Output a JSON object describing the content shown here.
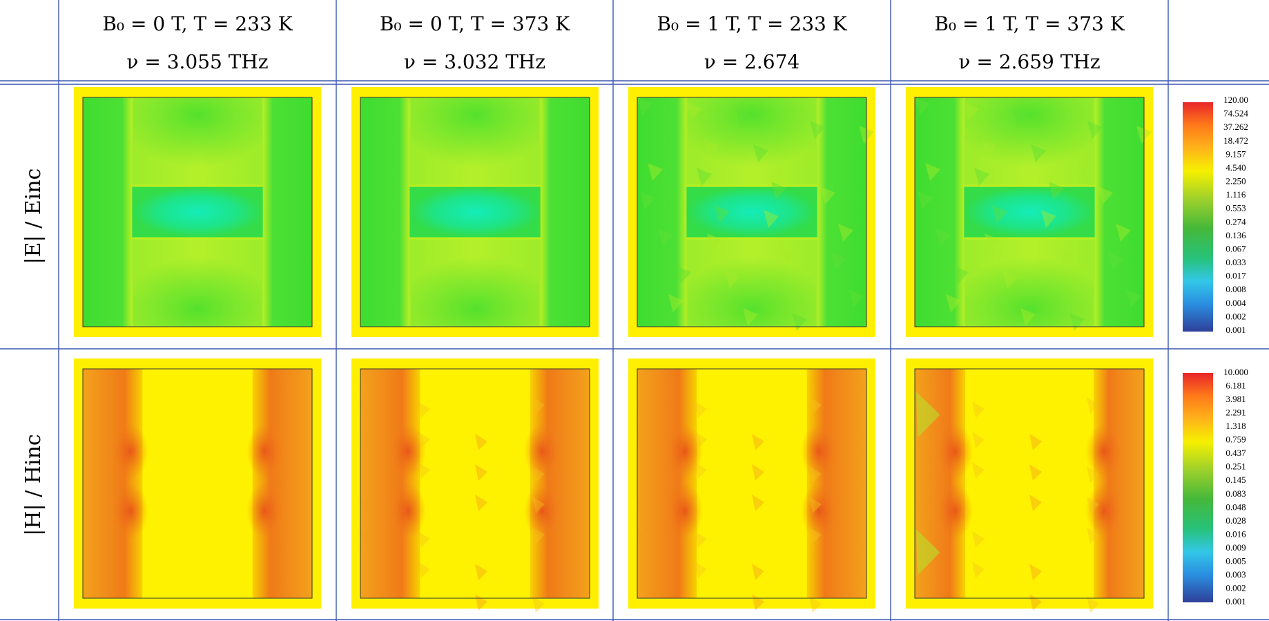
{
  "columns": [
    {
      "title": "B₀ = 0 T, T = 233 K",
      "freq": "ν = 3.055 THz"
    },
    {
      "title": "B₀ = 0 T, T = 373 K",
      "freq": "ν = 3.032 THz"
    },
    {
      "title": "B₀ = 1 T, T = 233 K",
      "freq": "ν = 2.674"
    },
    {
      "title": "B₀ = 1 T, T = 373 K",
      "freq": "ν = 2.659 THz"
    }
  ],
  "rows": [
    {
      "label": "|E| / Einc",
      "key": "E"
    },
    {
      "label": "|H| / Hinc",
      "key": "H"
    }
  ],
  "colorbars": {
    "E": {
      "ticks": [
        "120.00",
        "74.524",
        "37.262",
        "18.472",
        "9.157",
        "4.540",
        "2.250",
        "1.116",
        "0.553",
        "0.274",
        "0.136",
        "0.067",
        "0.033",
        "0.017",
        "0.008",
        "0.004",
        "0.002",
        "0.001"
      ]
    },
    "H": {
      "ticks": [
        "10.000",
        "6.181",
        "3.981",
        "2.291",
        "1.318",
        "0.759",
        "0.437",
        "0.251",
        "0.145",
        "0.083",
        "0.048",
        "0.028",
        "0.016",
        "0.009",
        "0.005",
        "0.003",
        "0.002",
        "0.001"
      ]
    }
  },
  "colors": {
    "grid_line": "#3b57b0",
    "map_yellow": "#ffef00",
    "map_green": "#3fe13a",
    "map_cyan": "#18e4a6",
    "map_orange": "#f08a1c",
    "map_red": "#e8541c"
  }
}
